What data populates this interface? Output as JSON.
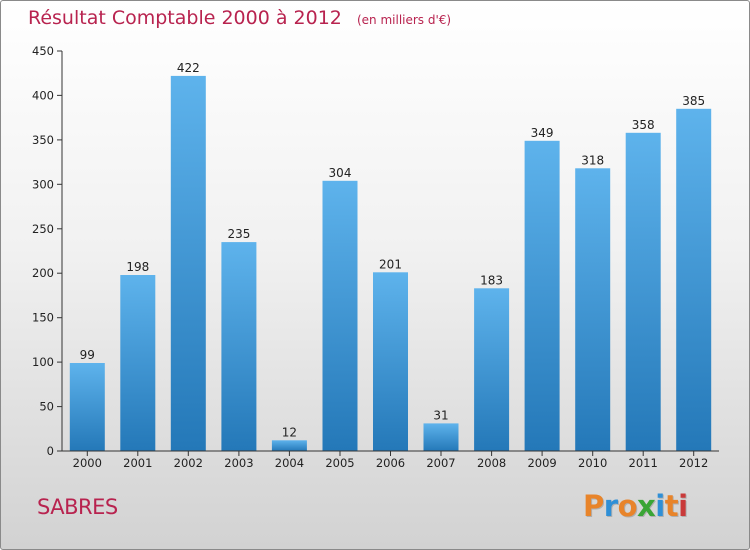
{
  "header": {
    "title": "Résultat Comptable 2000 à 2012",
    "subtitle": "(en milliers d'€)"
  },
  "footer": {
    "commune": "SABRES",
    "logo_text": "Proxiti"
  },
  "colors": {
    "title": "#b8234f",
    "bar_light": "#5eb3ec",
    "bar_dark": "#2478b8",
    "axis": "#333333"
  },
  "chart_data": {
    "type": "bar",
    "title": "Résultat Comptable 2000 à 2012",
    "subtitle": "(en milliers d'€)",
    "xlabel": "",
    "ylabel": "",
    "categories": [
      "2000",
      "2001",
      "2002",
      "2003",
      "2004",
      "2005",
      "2006",
      "2007",
      "2008",
      "2009",
      "2010",
      "2011",
      "2012"
    ],
    "values": [
      99,
      198,
      422,
      235,
      12,
      304,
      201,
      31,
      183,
      349,
      318,
      358,
      385
    ],
    "ylim": [
      0,
      450
    ],
    "yticks": [
      0,
      50,
      100,
      150,
      200,
      250,
      300,
      350,
      400,
      450
    ],
    "legend": "none",
    "grid": false
  }
}
